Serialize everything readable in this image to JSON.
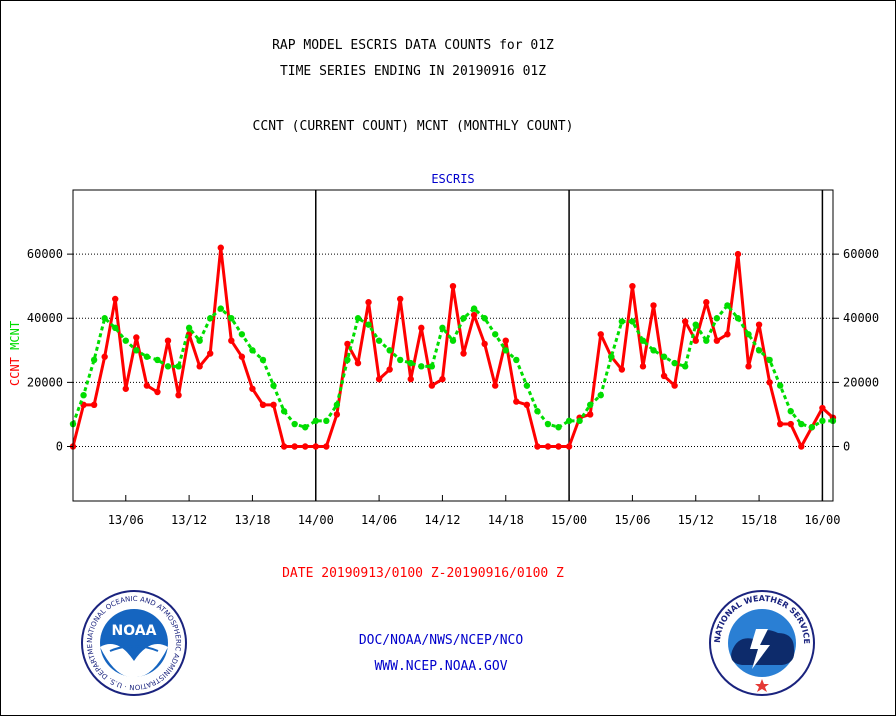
{
  "header": {
    "title_line1": "RAP MODEL ESCRIS DATA COUNTS for 01Z",
    "title_line2": "TIME SERIES ENDING IN 20190916 01Z",
    "subtitle": "CCNT (CURRENT COUNT) MCNT (MONTHLY COUNT)"
  },
  "date_range": "DATE 20190913/0100 Z-20190916/0100 Z",
  "footer": {
    "org_line": "DOC/NOAA/NWS/NCEP/NCO",
    "url_line": "WWW.NCEP.NOAA.GOV"
  },
  "logos": {
    "noaa_text": "NOAA",
    "noaa_ring_text": "NATIONAL OCEANIC AND ATMOSPHERIC ADMINISTRATION · U.S. DEPARTMENT OF COMMERCE",
    "nws_ring_text": "NATIONAL WEATHER SERVICE"
  },
  "colors": {
    "ccnt": "#ff0000",
    "mcnt": "#00dd00",
    "panel_title": "#0000cc"
  },
  "chart_data": {
    "type": "line",
    "title": "ESCRIS",
    "ylabel_left_ccnt": "CCNT",
    "ylabel_left_mcnt": "MCNT",
    "ylim": [
      -17000,
      80000
    ],
    "xlim_hours": [
      0,
      72
    ],
    "yticks": [
      0,
      20000,
      40000,
      60000
    ],
    "ytick_labels": [
      "0",
      "20000",
      "40000",
      "60000"
    ],
    "xticks_hours": [
      5,
      11,
      17,
      23,
      29,
      35,
      41,
      47,
      53,
      59,
      65,
      71
    ],
    "xtick_labels": [
      "13/06",
      "13/12",
      "13/18",
      "14/00",
      "14/06",
      "14/12",
      "14/18",
      "15/00",
      "15/06",
      "15/12",
      "15/18",
      "16/00"
    ],
    "day_boundaries_hours": [
      23,
      47,
      71
    ],
    "grid": "horizontal",
    "series": [
      {
        "name": "CCNT",
        "style": "solid",
        "values": [
          0,
          13000,
          13000,
          28000,
          46000,
          18000,
          34000,
          19000,
          17000,
          33000,
          16000,
          35000,
          25000,
          29000,
          62000,
          33000,
          28000,
          18000,
          13000,
          13000,
          0,
          0,
          0,
          0,
          0,
          10000,
          32000,
          26000,
          45000,
          21000,
          24000,
          46000,
          21000,
          37000,
          19000,
          21000,
          50000,
          29000,
          41000,
          32000,
          19000,
          33000,
          14000,
          13000,
          0,
          0,
          0,
          0,
          9000,
          10000,
          35000,
          28000,
          24000,
          50000,
          25000,
          44000,
          22000,
          19000,
          39000,
          33000,
          45000,
          33000,
          35000,
          60000,
          25000,
          38000,
          20000,
          7000,
          7000,
          0,
          6000,
          12000,
          9000
        ]
      },
      {
        "name": "MCNT",
        "style": "dotted",
        "values": [
          7000,
          16000,
          27000,
          40000,
          37000,
          33000,
          30000,
          28000,
          27000,
          25000,
          25000,
          37000,
          33000,
          40000,
          43000,
          40000,
          35000,
          30000,
          27000,
          19000,
          11000,
          7000,
          6000,
          8000,
          8000,
          13000,
          27000,
          40000,
          38000,
          33000,
          30000,
          27000,
          26000,
          25000,
          25000,
          37000,
          33000,
          40000,
          43000,
          40000,
          35000,
          30000,
          27000,
          19000,
          11000,
          7000,
          6000,
          8000,
          8000,
          13000,
          16000,
          28000,
          39000,
          39000,
          33000,
          30000,
          28000,
          26000,
          25000,
          38000,
          33000,
          40000,
          44000,
          40000,
          35000,
          30000,
          27000,
          19000,
          11000,
          7000,
          6000,
          8000,
          8000
        ]
      }
    ]
  }
}
